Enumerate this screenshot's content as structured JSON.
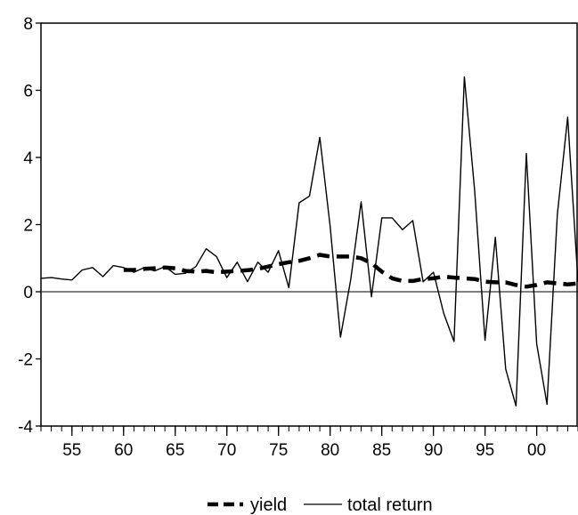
{
  "chart_data": {
    "type": "line",
    "title": "",
    "xlabel": "",
    "ylabel": "",
    "xlim": [
      1952,
      2004
    ],
    "ylim": [
      -4,
      8
    ],
    "yticks": [
      "-4",
      "-2",
      "0",
      "2",
      "4",
      "6",
      "8"
    ],
    "xticks": [
      {
        "year": 1955,
        "label": "55"
      },
      {
        "year": 1960,
        "label": "60"
      },
      {
        "year": 1965,
        "label": "65"
      },
      {
        "year": 1970,
        "label": "70"
      },
      {
        "year": 1975,
        "label": "75"
      },
      {
        "year": 1980,
        "label": "80"
      },
      {
        "year": 1985,
        "label": "85"
      },
      {
        "year": 1990,
        "label": "90"
      },
      {
        "year": 1995,
        "label": "95"
      },
      {
        "year": 2000,
        "label": "00"
      }
    ],
    "grid": false,
    "legend_position": "bottom",
    "series": [
      {
        "name": "yield",
        "style": "dashed-thick",
        "x": [
          1960,
          1961,
          1962,
          1963,
          1964,
          1965,
          1966,
          1967,
          1968,
          1969,
          1970,
          1971,
          1972,
          1973,
          1974,
          1975,
          1976,
          1977,
          1978,
          1979,
          1980,
          1981,
          1982,
          1983,
          1984,
          1985,
          1986,
          1987,
          1988,
          1989,
          1990,
          1991,
          1992,
          1993,
          1994,
          1995,
          1996,
          1997,
          1998,
          1999,
          2000,
          2001,
          2002,
          2003,
          2004
        ],
        "values": [
          0.65,
          0.65,
          0.68,
          0.7,
          0.72,
          0.7,
          0.62,
          0.6,
          0.62,
          0.58,
          0.6,
          0.62,
          0.64,
          0.68,
          0.75,
          0.82,
          0.88,
          0.92,
          1.0,
          1.1,
          1.05,
          1.05,
          1.05,
          1.0,
          0.85,
          0.6,
          0.4,
          0.32,
          0.32,
          0.38,
          0.4,
          0.45,
          0.42,
          0.4,
          0.38,
          0.3,
          0.28,
          0.28,
          0.2,
          0.15,
          0.2,
          0.28,
          0.25,
          0.22,
          0.25
        ]
      },
      {
        "name": "total return",
        "style": "solid-thin",
        "x": [
          1952,
          1953,
          1954,
          1955,
          1956,
          1957,
          1958,
          1959,
          1960,
          1961,
          1962,
          1963,
          1964,
          1965,
          1966,
          1967,
          1968,
          1969,
          1970,
          1971,
          1972,
          1973,
          1974,
          1975,
          1976,
          1977,
          1978,
          1979,
          1980,
          1981,
          1982,
          1983,
          1984,
          1985,
          1986,
          1987,
          1988,
          1989,
          1990,
          1991,
          1992,
          1993,
          1994,
          1995,
          1996,
          1997,
          1998,
          1999,
          2000,
          2001,
          2002,
          2003,
          2004
        ],
        "values": [
          0.4,
          0.42,
          0.38,
          0.35,
          0.65,
          0.72,
          0.45,
          0.78,
          0.72,
          0.58,
          0.72,
          0.62,
          0.75,
          0.52,
          0.55,
          0.75,
          1.28,
          1.05,
          0.42,
          0.88,
          0.3,
          0.88,
          0.58,
          1.22,
          0.12,
          2.65,
          2.85,
          4.6,
          1.95,
          -1.35,
          0.38,
          2.68,
          -0.15,
          2.2,
          2.2,
          1.85,
          2.12,
          0.3,
          0.58,
          -0.65,
          -1.48,
          6.4,
          3.0,
          -1.45,
          1.62,
          -2.3,
          -3.4,
          4.12,
          -1.55,
          -3.35,
          2.3,
          5.2,
          0.3
        ]
      }
    ]
  },
  "legend": {
    "items": [
      {
        "label": "yield",
        "color": "#000000"
      },
      {
        "label": "total return",
        "color": "#000000"
      }
    ]
  }
}
